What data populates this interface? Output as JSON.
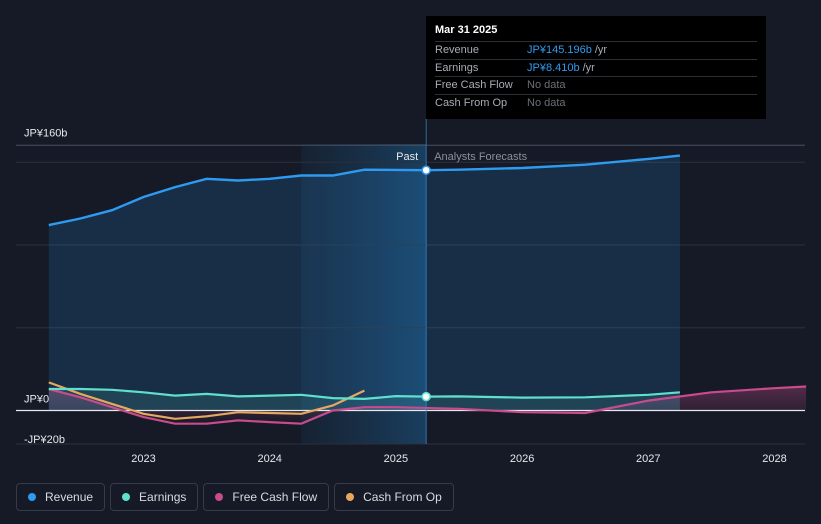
{
  "chart_data": {
    "type": "area",
    "y_unit": "JP¥b",
    "ylim": [
      -20,
      160
    ],
    "y_axis_labels": [
      "JP¥160b",
      "JP¥0",
      "-JP¥20b"
    ],
    "x_ticks": [
      "2023",
      "2024",
      "2025",
      "2026",
      "2027",
      "2028"
    ],
    "past_label": "Past",
    "forecast_label": "Analysts Forecasts",
    "series": [
      {
        "name": "Revenue",
        "color": "#2e9bf0",
        "points": [
          [
            2022.25,
            112
          ],
          [
            2022.5,
            116
          ],
          [
            2022.75,
            121
          ],
          [
            2023.0,
            129
          ],
          [
            2023.25,
            135
          ],
          [
            2023.5,
            140
          ],
          [
            2023.75,
            139
          ],
          [
            2024.0,
            140
          ],
          [
            2024.25,
            142
          ],
          [
            2024.5,
            142
          ],
          [
            2024.75,
            145.5
          ],
          [
            2025.0,
            145.4
          ],
          [
            2025.24,
            145.2
          ],
          [
            2025.5,
            145.5
          ],
          [
            2026.0,
            146.5
          ],
          [
            2026.5,
            148.5
          ],
          [
            2027.0,
            152
          ],
          [
            2027.25,
            154
          ]
        ]
      },
      {
        "name": "Earnings",
        "color": "#5fe0cd",
        "points": [
          [
            2022.25,
            13
          ],
          [
            2022.5,
            13
          ],
          [
            2022.75,
            12.5
          ],
          [
            2023.0,
            11
          ],
          [
            2023.25,
            9
          ],
          [
            2023.5,
            10
          ],
          [
            2023.75,
            8.5
          ],
          [
            2024.0,
            9
          ],
          [
            2024.25,
            9.5
          ],
          [
            2024.5,
            7.5
          ],
          [
            2024.75,
            7
          ],
          [
            2025.0,
            8.7
          ],
          [
            2025.24,
            8.41
          ],
          [
            2025.5,
            8.5
          ],
          [
            2026.0,
            7.8
          ],
          [
            2026.5,
            8
          ],
          [
            2027.0,
            9.5
          ],
          [
            2027.25,
            11
          ]
        ]
      },
      {
        "name": "Free Cash Flow",
        "color": "#c84b8c",
        "points": [
          [
            2022.25,
            13
          ],
          [
            2022.5,
            8
          ],
          [
            2022.75,
            2
          ],
          [
            2023.0,
            -4
          ],
          [
            2023.25,
            -8
          ],
          [
            2023.5,
            -8
          ],
          [
            2023.75,
            -6
          ],
          [
            2024.0,
            -7
          ],
          [
            2024.25,
            -8
          ],
          [
            2024.5,
            0
          ],
          [
            2024.75,
            2
          ],
          [
            2025.0,
            2
          ],
          [
            2025.5,
            1
          ],
          [
            2026.0,
            -1
          ],
          [
            2026.5,
            -1.5
          ],
          [
            2027.0,
            6
          ],
          [
            2027.5,
            11
          ],
          [
            2028.0,
            13.5
          ],
          [
            2028.25,
            14.5
          ]
        ]
      },
      {
        "name": "Cash From Op",
        "color": "#e8a760",
        "points": [
          [
            2022.25,
            17
          ],
          [
            2022.5,
            10
          ],
          [
            2022.75,
            4
          ],
          [
            2023.0,
            -2
          ],
          [
            2023.25,
            -5
          ],
          [
            2023.5,
            -3.5
          ],
          [
            2023.75,
            -1
          ],
          [
            2024.0,
            -1.5
          ],
          [
            2024.25,
            -2
          ],
          [
            2024.5,
            3
          ],
          [
            2024.75,
            12
          ]
        ]
      }
    ]
  },
  "tooltip": {
    "date": "Mar 31 2025",
    "rows": [
      {
        "label": "Revenue",
        "value": "JP¥145.196b",
        "unit": "/yr"
      },
      {
        "label": "Earnings",
        "value": "JP¥8.410b",
        "unit": "/yr"
      },
      {
        "label": "Free Cash Flow",
        "value": "No data",
        "unit": ""
      },
      {
        "label": "Cash From Op",
        "value": "No data",
        "unit": ""
      }
    ]
  },
  "legend": [
    {
      "label": "Revenue",
      "color": "#2e9bf0"
    },
    {
      "label": "Earnings",
      "color": "#5fe0cd"
    },
    {
      "label": "Free Cash Flow",
      "color": "#c84b8c"
    },
    {
      "label": "Cash From Op",
      "color": "#e8a760"
    }
  ]
}
